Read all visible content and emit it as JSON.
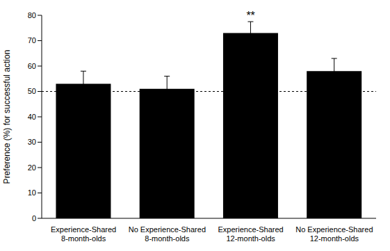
{
  "chart_data": {
    "type": "bar",
    "categories": [
      "Experience-Shared\n8-month-olds",
      "No Experience-Shared\n8-month-olds",
      "Experience-Shared\n12-month-olds",
      "No Experience-Shared\n12-month-olds"
    ],
    "values": [
      53,
      51,
      73,
      58
    ],
    "errors": [
      5,
      5,
      4.5,
      5
    ],
    "color": "#000000",
    "y_label": "Preference (%) for successful action",
    "ylim": [
      0,
      80
    ],
    "yticks": [
      0,
      10,
      20,
      30,
      40,
      50,
      60,
      70,
      80
    ],
    "reference_line": 50,
    "annotations": [
      {
        "category": "Experience-Shared\n12-month-olds",
        "text": "**"
      }
    ],
    "grid": false
  }
}
